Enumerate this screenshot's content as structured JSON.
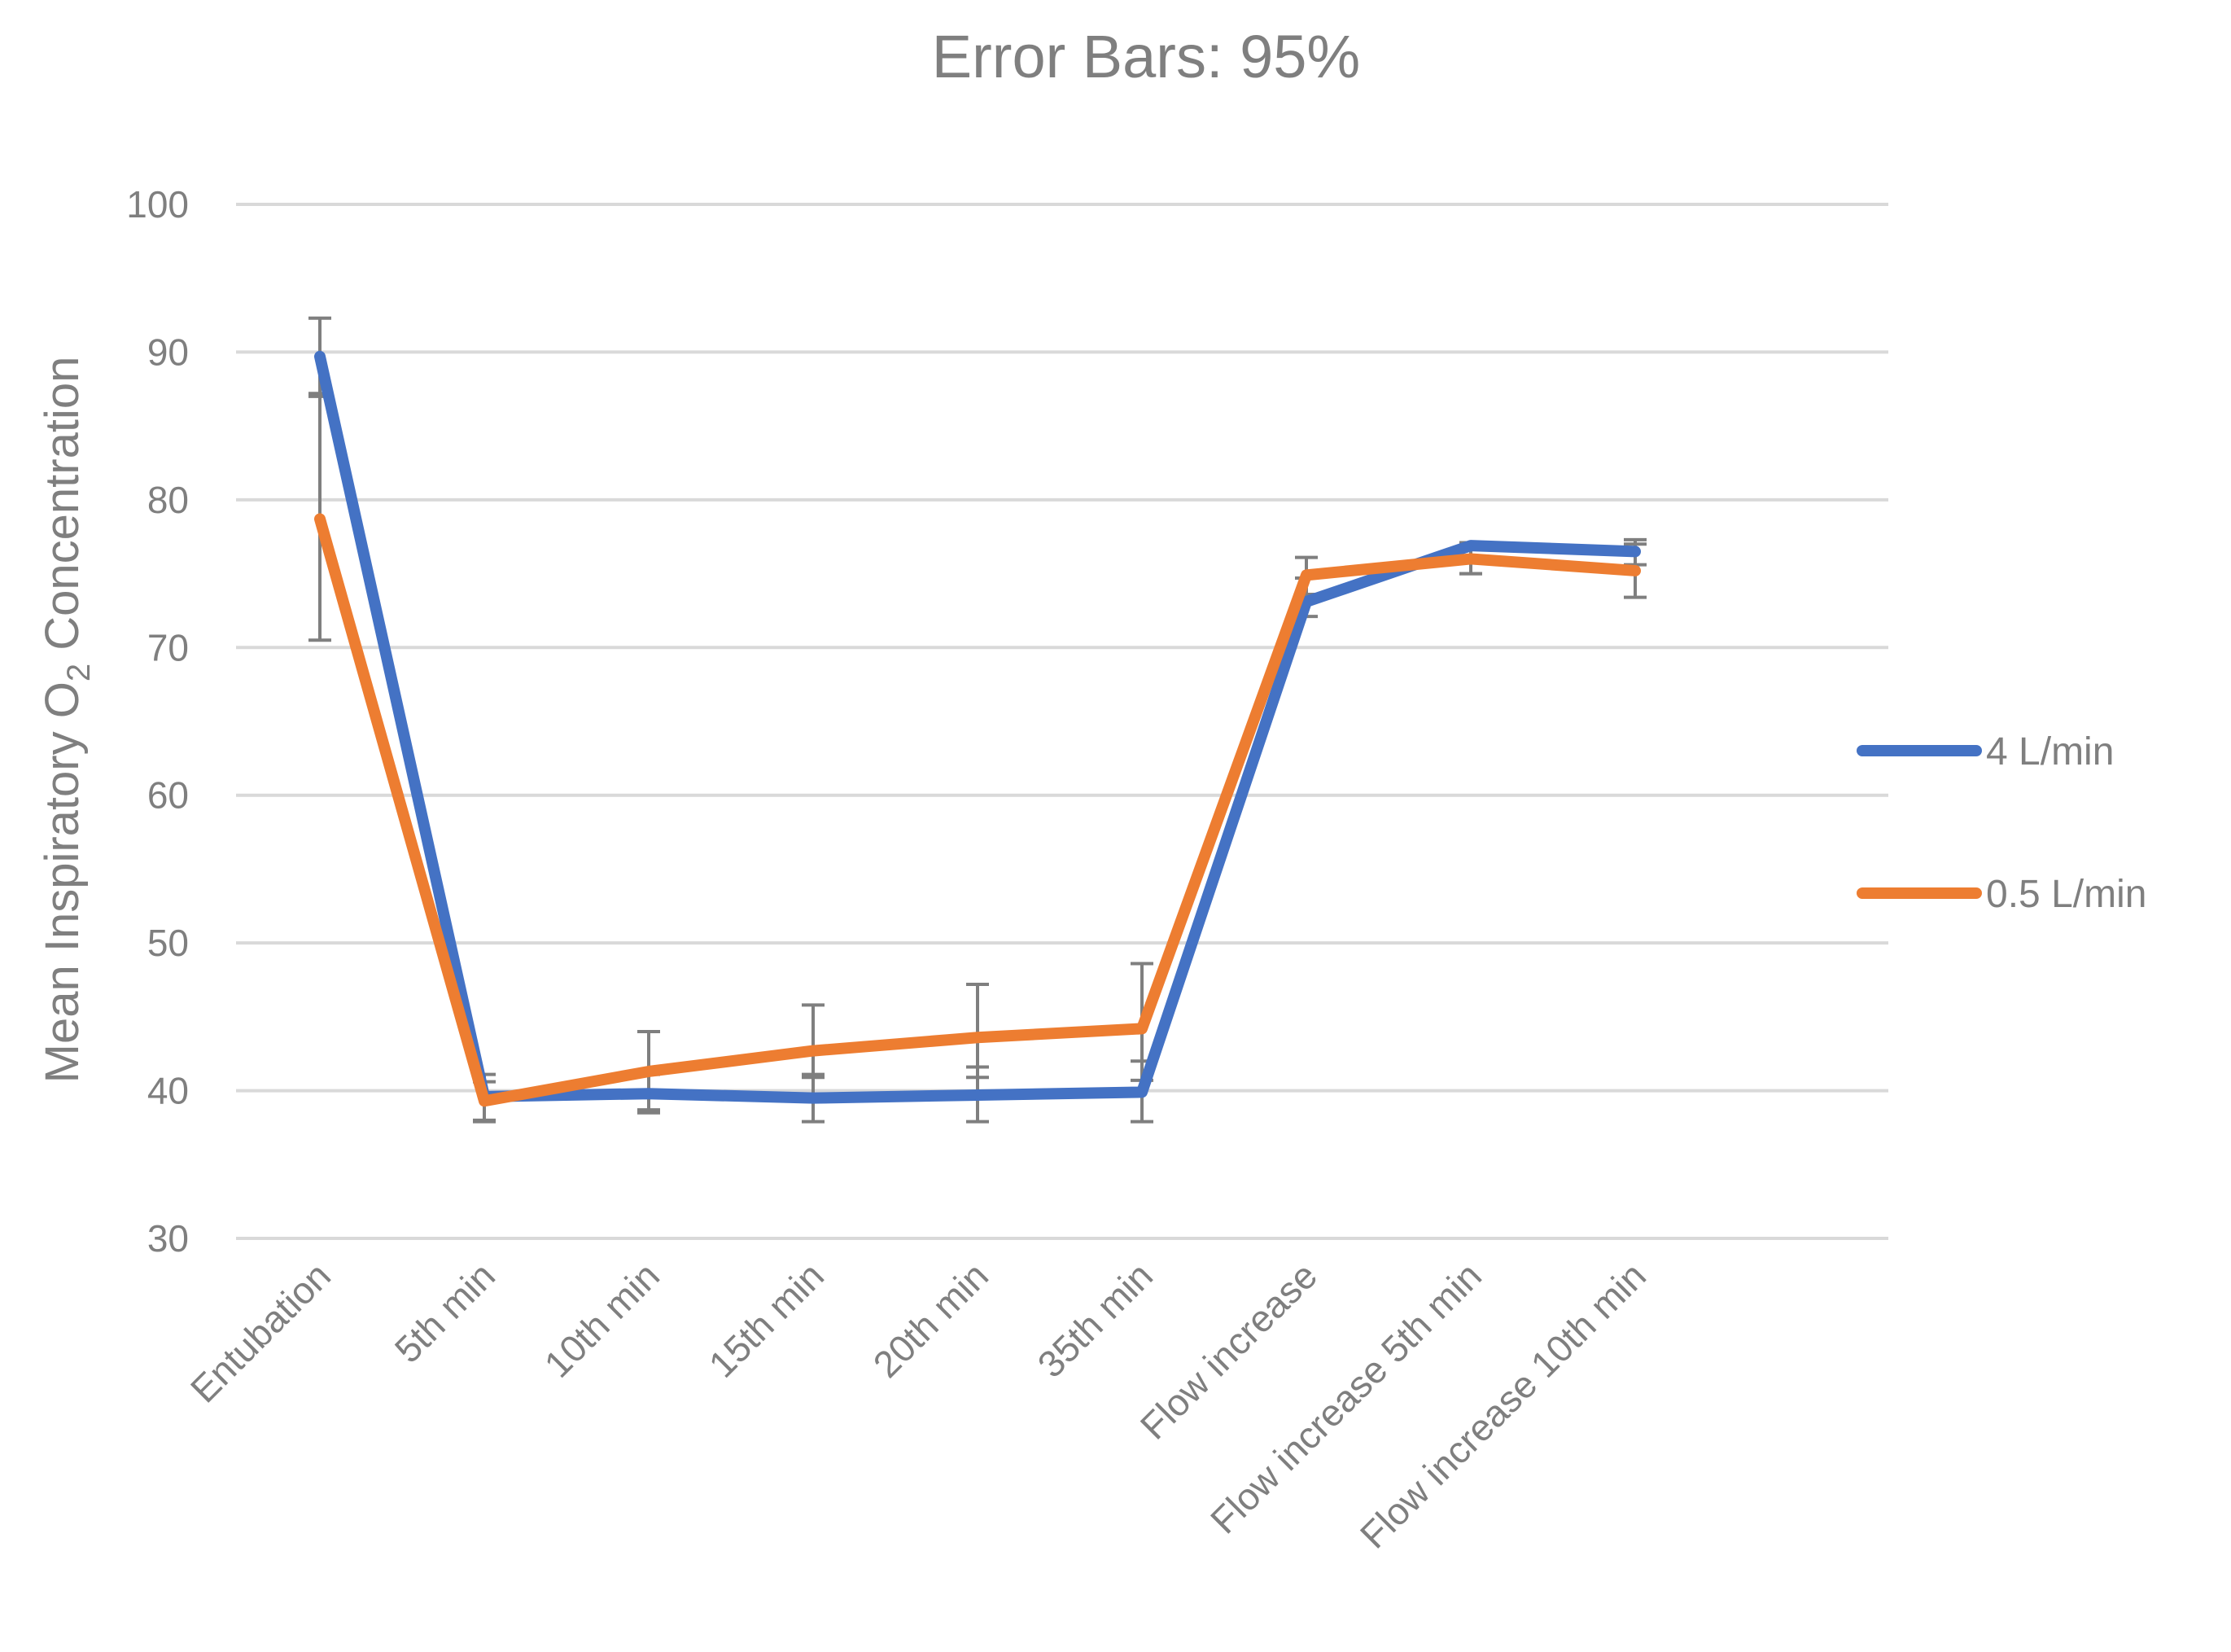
{
  "chart_data": {
    "type": "line",
    "title": "Error Bars: 95%",
    "ylabel_parts": [
      "Mean Inspiratory O",
      "2",
      " Concentration"
    ],
    "xlabel": "",
    "ylim": [
      30,
      100
    ],
    "yticks": [
      30,
      40,
      50,
      60,
      70,
      80,
      90,
      100
    ],
    "categories": [
      "Entubation",
      "5th min",
      "10th min",
      "15th min",
      "20th min",
      "35th min",
      "Flow increase",
      "Flow increase 5th min",
      "Flow increase 10th min"
    ],
    "series": [
      {
        "name": "4 L/min",
        "color": "#4472c4",
        "values": [
          89.7,
          39.6,
          39.8,
          39.5,
          39.7,
          39.9,
          73.1,
          76.9,
          76.5
        ],
        "err_low": [
          87.2,
          37.9,
          38.5,
          37.9,
          37.9,
          37.9,
          72.1,
          75.0,
          75.6
        ],
        "err_high": [
          92.3,
          41.1,
          41.1,
          41.1,
          41.6,
          42.0,
          74.7,
          77.1,
          77.3
        ]
      },
      {
        "name": "0.5 L/min",
        "color": "#ed7d31",
        "values": [
          78.7,
          39.3,
          41.3,
          42.7,
          43.6,
          44.2,
          74.9,
          76.0,
          75.2
        ],
        "err_low": [
          70.5,
          38.0,
          38.7,
          40.9,
          40.9,
          40.7,
          73.6,
          75.0,
          73.4
        ],
        "err_high": [
          87.0,
          40.6,
          44.0,
          45.8,
          47.2,
          48.6,
          76.1,
          77.0,
          77.0
        ]
      }
    ],
    "error_bar_color": "#7f7f7f",
    "grid": true,
    "legend_position": "right"
  }
}
